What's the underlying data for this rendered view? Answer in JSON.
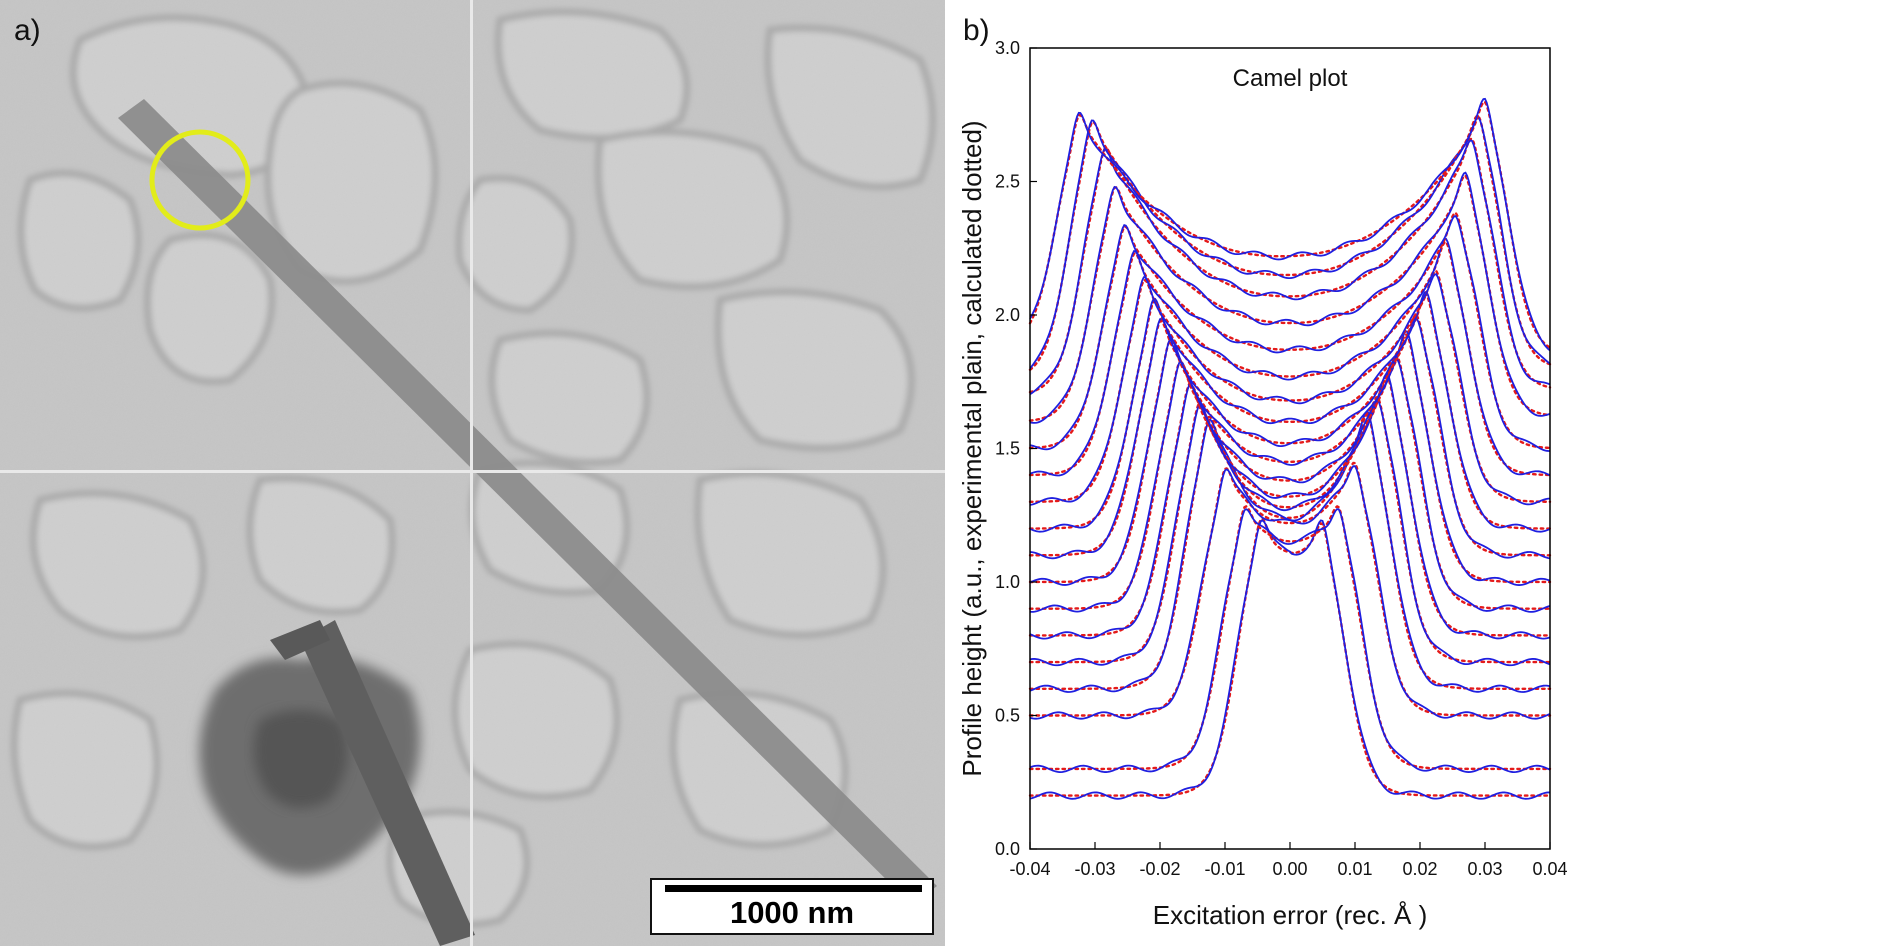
{
  "panel_a": {
    "label": "a)",
    "scale_bar": "1000 nm",
    "highlight_color": "#e2ec1a"
  },
  "panel_b": {
    "label": "b)"
  },
  "chart_data": {
    "type": "line",
    "title": "Camel plot",
    "xlabel": "Excitation error (rec. Å )",
    "ylabel": "Profile height (a.u., experimental plain, calculated dotted)",
    "xlim": [
      -0.04,
      0.04
    ],
    "ylim": [
      0.0,
      3.0
    ],
    "x_ticks": [
      "-0.04",
      "-0.03",
      "-0.02",
      "-0.01",
      "0.00",
      "0.01",
      "0.02",
      "0.03",
      "0.04"
    ],
    "y_ticks": [
      "0.0",
      "0.5",
      "1.0",
      "1.5",
      "2.0",
      "2.5",
      "3.0"
    ],
    "series_style": {
      "experimental": {
        "style": "solid",
        "color": "#1f1fe0"
      },
      "calculated": {
        "style": "dotted",
        "color": "#e41a1a"
      }
    },
    "profiles": [
      {
        "baseline": 0.2,
        "left_peak_x": -0.0045,
        "right_peak_x": 0.005,
        "left_peak_y": 1.24,
        "right_peak_y": 1.2,
        "trough_y": 1.1,
        "left_tail": 0.2,
        "right_tail": 0.2
      },
      {
        "baseline": 0.3,
        "left_peak_x": -0.007,
        "right_peak_x": 0.0075,
        "left_peak_y": 1.26,
        "right_peak_y": 1.26,
        "trough_y": 1.15,
        "left_tail": 0.3,
        "right_tail": 0.3
      },
      {
        "baseline": 0.5,
        "left_peak_x": -0.01,
        "right_peak_x": 0.01,
        "left_peak_y": 1.4,
        "right_peak_y": 1.45,
        "trough_y": 1.22,
        "left_tail": 0.5,
        "right_tail": 0.5
      },
      {
        "baseline": 0.6,
        "left_peak_x": -0.0125,
        "right_peak_x": 0.012,
        "left_peak_y": 1.6,
        "right_peak_y": 1.62,
        "trough_y": 1.24,
        "left_tail": 0.6,
        "right_tail": 0.6
      },
      {
        "baseline": 0.7,
        "left_peak_x": -0.014,
        "right_peak_x": 0.0135,
        "left_peak_y": 1.65,
        "right_peak_y": 1.7,
        "trough_y": 1.28,
        "left_tail": 0.7,
        "right_tail": 0.7
      },
      {
        "baseline": 0.8,
        "left_peak_x": -0.0155,
        "right_peak_x": 0.015,
        "left_peak_y": 1.72,
        "right_peak_y": 1.78,
        "trough_y": 1.32,
        "left_tail": 0.8,
        "right_tail": 0.8
      },
      {
        "baseline": 0.9,
        "left_peak_x": -0.017,
        "right_peak_x": 0.0165,
        "left_peak_y": 1.8,
        "right_peak_y": 1.85,
        "trough_y": 1.38,
        "left_tail": 0.9,
        "right_tail": 0.9
      },
      {
        "baseline": 1.0,
        "left_peak_x": -0.0185,
        "right_peak_x": 0.018,
        "left_peak_y": 1.88,
        "right_peak_y": 1.93,
        "trough_y": 1.45,
        "left_tail": 1.0,
        "right_tail": 1.0
      },
      {
        "baseline": 1.1,
        "left_peak_x": -0.02,
        "right_peak_x": 0.0195,
        "left_peak_y": 1.95,
        "right_peak_y": 2.0,
        "trough_y": 1.52,
        "left_tail": 1.1,
        "right_tail": 1.1
      },
      {
        "baseline": 1.2,
        "left_peak_x": -0.021,
        "right_peak_x": 0.021,
        "left_peak_y": 2.02,
        "right_peak_y": 2.08,
        "trough_y": 1.6,
        "left_tail": 1.2,
        "right_tail": 1.2
      },
      {
        "baseline": 1.3,
        "left_peak_x": -0.0225,
        "right_peak_x": 0.0225,
        "left_peak_y": 2.1,
        "right_peak_y": 2.18,
        "trough_y": 1.68,
        "left_tail": 1.3,
        "right_tail": 1.3
      },
      {
        "baseline": 1.4,
        "left_peak_x": -0.024,
        "right_peak_x": 0.024,
        "left_peak_y": 2.2,
        "right_peak_y": 2.3,
        "trough_y": 1.77,
        "left_tail": 1.4,
        "right_tail": 1.4
      },
      {
        "baseline": 1.5,
        "left_peak_x": -0.0255,
        "right_peak_x": 0.0255,
        "left_peak_y": 2.3,
        "right_peak_y": 2.42,
        "trough_y": 1.87,
        "left_tail": 1.5,
        "right_tail": 1.5
      },
      {
        "baseline": 1.6,
        "left_peak_x": -0.027,
        "right_peak_x": 0.027,
        "left_peak_y": 2.45,
        "right_peak_y": 2.55,
        "trough_y": 1.97,
        "left_tail": 1.6,
        "right_tail": 1.62
      },
      {
        "baseline": 1.7,
        "left_peak_x": -0.0285,
        "right_peak_x": 0.028,
        "left_peak_y": 2.6,
        "right_peak_y": 2.68,
        "trough_y": 2.07,
        "left_tail": 1.7,
        "right_tail": 1.72
      },
      {
        "baseline": 1.76,
        "left_peak_x": -0.0305,
        "right_peak_x": 0.029,
        "left_peak_y": 2.7,
        "right_peak_y": 2.75,
        "trough_y": 2.15,
        "left_tail": 1.76,
        "right_tail": 1.8
      },
      {
        "baseline": 1.85,
        "left_peak_x": -0.0325,
        "right_peak_x": 0.03,
        "left_peak_y": 2.72,
        "right_peak_y": 2.84,
        "trough_y": 2.22,
        "left_tail": 1.88,
        "right_tail": 1.85
      }
    ]
  }
}
